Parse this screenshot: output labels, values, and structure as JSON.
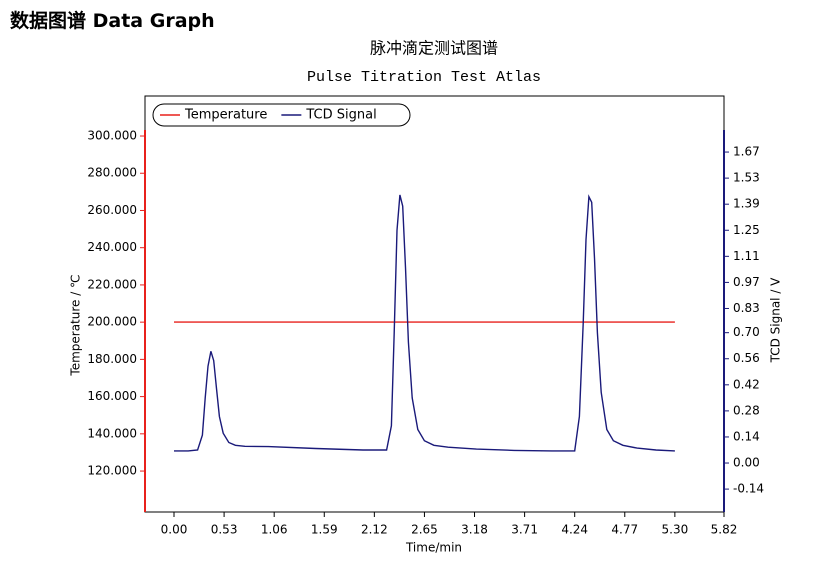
{
  "header": {
    "title": "数据图谱 Data Graph"
  },
  "chart_data": {
    "type": "line",
    "title": "脉冲滴定测试图谱",
    "subtitle": "Pulse Titration Test Atlas",
    "x_label": "Time/min",
    "y_label": "Temperature / ℃",
    "y2_label": "TCD Signal / V",
    "xlim": [
      -0.307,
      5.82
    ],
    "xticks": [
      {
        "value": 0,
        "label": "0.00"
      },
      0.53,
      1.06,
      1.59,
      2.12,
      2.65,
      3.18,
      3.71,
      4.24,
      4.77,
      {
        "value": 5.3,
        "label": "5.30"
      },
      5.82
    ],
    "ylim": [
      98,
      321.5
    ],
    "yticks": [
      {
        "value": 120,
        "label": "120.000"
      },
      {
        "value": 140,
        "label": "140.000"
      },
      {
        "value": 160,
        "label": "160.000"
      },
      {
        "value": 180,
        "label": "180.000"
      },
      {
        "value": 200,
        "label": "200.000"
      },
      {
        "value": 220,
        "label": "220.000"
      },
      {
        "value": 240,
        "label": "240.000"
      },
      {
        "value": 260,
        "label": "260.000"
      },
      {
        "value": 280,
        "label": "280.000"
      },
      {
        "value": 300,
        "label": "300.000"
      }
    ],
    "y2lim": [
      -0.263,
      1.971
    ],
    "y2ticks": [
      -0.14,
      {
        "value": 0,
        "label": "0.00"
      },
      0.14,
      0.28,
      0.42,
      0.56,
      {
        "value": 0.7,
        "label": "0.70"
      },
      0.83,
      0.97,
      1.11,
      1.25,
      1.39,
      1.53,
      1.67
    ],
    "legend": "upper left",
    "series": [
      {
        "name": "Temperature",
        "color": "#e8211c",
        "x": [
          0,
          5.3
        ],
        "values": [
          200,
          200
        ]
      },
      {
        "name": "TCD Signal",
        "color": "#1a1a7a",
        "axis": "y2",
        "x": [
          0.0,
          0.15,
          0.25,
          0.3,
          0.33,
          0.36,
          0.39,
          0.42,
          0.45,
          0.48,
          0.52,
          0.58,
          0.65,
          0.75,
          1.0,
          1.5,
          2.0,
          2.25,
          2.3,
          2.33,
          2.36,
          2.39,
          2.42,
          2.45,
          2.48,
          2.52,
          2.58,
          2.65,
          2.75,
          2.9,
          3.2,
          3.6,
          4.0,
          4.24,
          4.29,
          4.33,
          4.36,
          4.39,
          4.42,
          4.45,
          4.48,
          4.52,
          4.58,
          4.65,
          4.75,
          4.9,
          5.1,
          5.3
        ],
        "values": [
          0.065,
          0.065,
          0.07,
          0.15,
          0.35,
          0.52,
          0.6,
          0.55,
          0.4,
          0.25,
          0.16,
          0.11,
          0.095,
          0.09,
          0.088,
          0.078,
          0.07,
          0.07,
          0.2,
          0.7,
          1.25,
          1.44,
          1.38,
          1.05,
          0.65,
          0.35,
          0.18,
          0.12,
          0.095,
          0.085,
          0.075,
          0.068,
          0.065,
          0.065,
          0.25,
          0.75,
          1.2,
          1.43,
          1.4,
          1.1,
          0.7,
          0.38,
          0.18,
          0.12,
          0.095,
          0.08,
          0.07,
          0.065
        ]
      }
    ]
  }
}
